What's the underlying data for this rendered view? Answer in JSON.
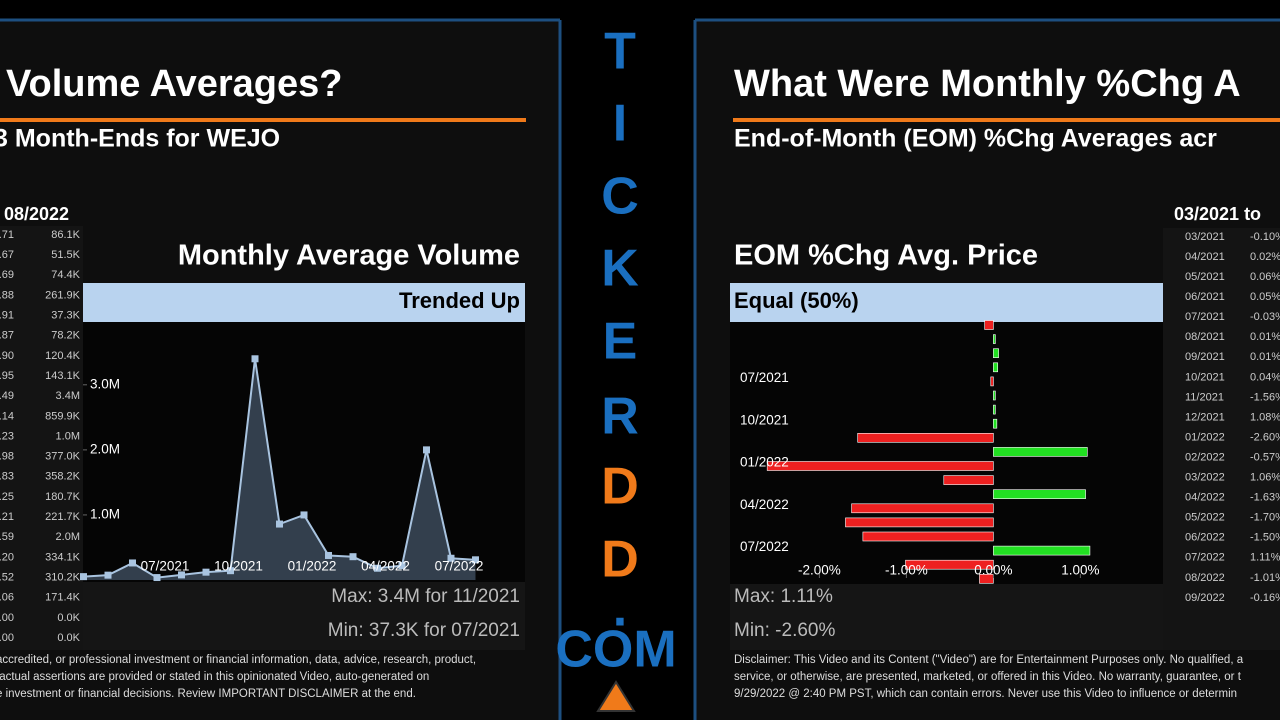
{
  "left_panel": {
    "title": "Volume Averages?",
    "subtitle": "3 Month-Ends for WEJO",
    "table_header": "08/2022",
    "table": {
      "rows": [
        [
          ".71",
          "86.1K"
        ],
        [
          ".67",
          "51.5K"
        ],
        [
          ".69",
          "74.4K"
        ],
        [
          ".88",
          "261.9K"
        ],
        [
          ".91",
          "37.3K"
        ],
        [
          ".87",
          "78.2K"
        ],
        [
          ".90",
          "120.4K"
        ],
        [
          ".95",
          "143.1K"
        ],
        [
          ".49",
          "3.4M"
        ],
        [
          ".14",
          "859.9K"
        ],
        [
          ".23",
          "1.0M"
        ],
        [
          ".98",
          "377.0K"
        ],
        [
          ".83",
          "358.2K"
        ],
        [
          ".25",
          "180.7K"
        ],
        [
          ".21",
          "221.7K"
        ],
        [
          ".59",
          "2.0M"
        ],
        [
          ".20",
          "334.1K"
        ],
        [
          ".52",
          "310.2K"
        ],
        [
          ".06",
          "171.4K"
        ],
        [
          ".00",
          "0.0K"
        ],
        [
          ".00",
          "0.0K"
        ]
      ]
    },
    "banner": "Trended Up",
    "max_label": "Max: 3.4M for 11/2021",
    "min_label": "Min: 37.3K for 07/2021",
    "disclaimer": [
      "accredited, or professional investment or financial information, data, advice, research, product,",
      "factual assertions are provided or stated in this opinionated Video, auto-generated on",
      "e investment or financial decisions. Review IMPORTANT DISCLAIMER at the end."
    ]
  },
  "right_panel": {
    "title": "What Were Monthly %Chg A",
    "subtitle": "End-of-Month (EOM) %Chg Averages acr",
    "table_header": "03/2021 to",
    "table": {
      "rows": [
        [
          "03/2021",
          "-0.10%"
        ],
        [
          "04/2021",
          "0.02%"
        ],
        [
          "05/2021",
          "0.06%"
        ],
        [
          "06/2021",
          "0.05%"
        ],
        [
          "07/2021",
          "-0.03%"
        ],
        [
          "08/2021",
          "0.01%"
        ],
        [
          "09/2021",
          "0.01%"
        ],
        [
          "10/2021",
          "0.04%"
        ],
        [
          "11/2021",
          "-1.56%"
        ],
        [
          "12/2021",
          "1.08%"
        ],
        [
          "01/2022",
          "-2.60%"
        ],
        [
          "02/2022",
          "-0.57%"
        ],
        [
          "03/2022",
          "1.06%"
        ],
        [
          "04/2022",
          "-1.63%"
        ],
        [
          "05/2022",
          "-1.70%"
        ],
        [
          "06/2022",
          "-1.50%"
        ],
        [
          "07/2022",
          "1.11%"
        ],
        [
          "08/2022",
          "-1.01%"
        ],
        [
          "09/2022",
          "-0.16%"
        ]
      ]
    },
    "banner": "Equal (50%)",
    "max_label": "Max: 1.11%",
    "min_label": "Min: -2.60%",
    "disclaimer": [
      "Disclaimer: This Video and its Content (\"Video\") are for Entertainment Purposes only. No qualified, a",
      "service, or otherwise, are presented, marketed, or offered in this Video. No warranty, guarantee, or t",
      "9/29/2022 @ 2:40 PM PST, which can contain errors. Never use this Video to influence or determin"
    ]
  },
  "brand": {
    "letters": [
      "T",
      "I",
      "C",
      "K",
      "E",
      "R",
      "D",
      "D",
      "."
    ],
    "suffix": "COM"
  },
  "chart_data": [
    {
      "type": "area",
      "title": "Monthly Average Volume",
      "categories": [
        null,
        null,
        null,
        "07/2021",
        null,
        null,
        "10/2021",
        null,
        null,
        "01/2022",
        null,
        null,
        "04/2022",
        null,
        null,
        "07/2022",
        null
      ],
      "values": [
        51500,
        74400,
        261900,
        37300,
        78200,
        120400,
        143100,
        3400000,
        859900,
        1000000,
        377000,
        358200,
        180700,
        221700,
        2000000,
        334100,
        310200
      ],
      "color": "#a9c4e0",
      "ylim": [
        0,
        3950000
      ],
      "yticks": [
        {
          "value": 1000000,
          "label": "1.0M"
        },
        {
          "value": 2000000,
          "label": "2.0M"
        },
        {
          "value": 3000000,
          "label": "3.0M"
        }
      ]
    },
    {
      "type": "hbar",
      "title": "EOM %Chg Avg. Price",
      "categories": [
        null,
        null,
        null,
        null,
        "07/2021",
        null,
        null,
        "10/2021",
        null,
        null,
        "01/2022",
        null,
        null,
        "04/2022",
        null,
        null,
        "07/2022",
        null,
        null
      ],
      "values": [
        -0.1,
        0.02,
        0.06,
        0.05,
        -0.03,
        0.01,
        0.01,
        0.04,
        -1.56,
        1.08,
        -2.6,
        -0.57,
        1.06,
        -1.63,
        -1.7,
        -1.5,
        1.11,
        -1.01,
        -0.16
      ],
      "color_positive": "#22e022",
      "color_negative": "#ee2020",
      "xlim": [
        -2.97,
        1.95
      ],
      "xticks": [
        {
          "value": -2,
          "label": "-2.00%"
        },
        {
          "value": -1,
          "label": "-1.00%"
        },
        {
          "value": 0,
          "label": "0.00%"
        },
        {
          "value": 1,
          "label": "1.00%"
        }
      ]
    }
  ]
}
